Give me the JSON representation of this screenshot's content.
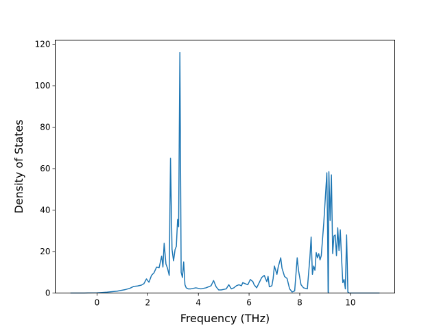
{
  "chart_data": {
    "type": "line",
    "title": "",
    "xlabel": "Frequency (THz)",
    "ylabel": "Density of States",
    "xlim": [
      -1.65,
      11.75
    ],
    "ylim": [
      0,
      122
    ],
    "xticks": [
      0,
      2,
      4,
      6,
      8,
      10
    ],
    "yticks": [
      0,
      20,
      40,
      60,
      80,
      100,
      120
    ],
    "grid": false,
    "legend": "none",
    "series": [
      {
        "color": "#1f77b4",
        "x": [
          -1.05,
          -0.5,
          0.0,
          0.4,
          0.8,
          1.1,
          1.3,
          1.45,
          1.6,
          1.75,
          1.85,
          1.95,
          2.05,
          2.15,
          2.25,
          2.35,
          2.45,
          2.55,
          2.6,
          2.65,
          2.72,
          2.78,
          2.85,
          2.9,
          2.96,
          3.02,
          3.08,
          3.13,
          3.18,
          3.22,
          3.27,
          3.32,
          3.37,
          3.42,
          3.47,
          3.52,
          3.6,
          3.7,
          3.9,
          4.1,
          4.3,
          4.5,
          4.6,
          4.7,
          4.8,
          4.9,
          5.1,
          5.2,
          5.3,
          5.4,
          5.5,
          5.6,
          5.7,
          5.75,
          5.85,
          5.95,
          6.05,
          6.15,
          6.2,
          6.3,
          6.4,
          6.5,
          6.6,
          6.7,
          6.75,
          6.8,
          6.9,
          6.95,
          7.0,
          7.1,
          7.15,
          7.25,
          7.3,
          7.4,
          7.5,
          7.6,
          7.7,
          7.8,
          7.9,
          7.95,
          8.05,
          8.15,
          8.3,
          8.4,
          8.45,
          8.5,
          8.55,
          8.6,
          8.65,
          8.7,
          8.75,
          8.8,
          8.85,
          8.9,
          8.95,
          9.0,
          9.07,
          9.1,
          9.12,
          9.13,
          9.15,
          9.2,
          9.25,
          9.3,
          9.35,
          9.4,
          9.45,
          9.5,
          9.55,
          9.6,
          9.65,
          9.7,
          9.75,
          9.8,
          9.85,
          9.9,
          9.95,
          10.0,
          10.05,
          10.1,
          10.12,
          10.15,
          10.2,
          11.15
        ],
        "y": [
          0,
          0,
          0.1,
          0.4,
          0.9,
          1.6,
          2.3,
          3.2,
          3.4,
          3.8,
          4.5,
          6.8,
          5.2,
          8.5,
          9.8,
          12.5,
          12.2,
          17.8,
          12.5,
          24.0,
          14.0,
          12.0,
          8.5,
          65.0,
          21.0,
          15.5,
          21.0,
          22.5,
          35.5,
          32.0,
          116.0,
          10.0,
          7.5,
          15.0,
          4.0,
          2.5,
          2.0,
          2.0,
          2.5,
          2.0,
          2.5,
          3.5,
          6.0,
          3.0,
          1.5,
          1.5,
          2.0,
          4.0,
          2.0,
          2.5,
          3.5,
          4.0,
          3.5,
          5.0,
          4.5,
          4.0,
          6.5,
          5.5,
          4.0,
          2.5,
          5.0,
          7.5,
          8.5,
          5.5,
          8.0,
          3.0,
          3.5,
          7.0,
          13.0,
          9.0,
          12.5,
          17.0,
          12.0,
          8.0,
          7.0,
          2.0,
          0.5,
          1.0,
          17.0,
          11.0,
          4.0,
          2.5,
          2.0,
          17.0,
          27.0,
          9.0,
          13.0,
          11.0,
          19.5,
          17.0,
          19.0,
          16.0,
          18.0,
          26.0,
          34.0,
          44.0,
          58.0,
          30.0,
          0.5,
          0,
          58.5,
          35.0,
          57.0,
          19.0,
          27.5,
          28.0,
          18.0,
          31.5,
          20.5,
          30.5,
          17.0,
          5.0,
          6.5,
          2.0,
          28.0,
          0.5,
          0,
          0,
          0,
          0,
          0,
          0,
          0,
          0
        ]
      }
    ]
  }
}
